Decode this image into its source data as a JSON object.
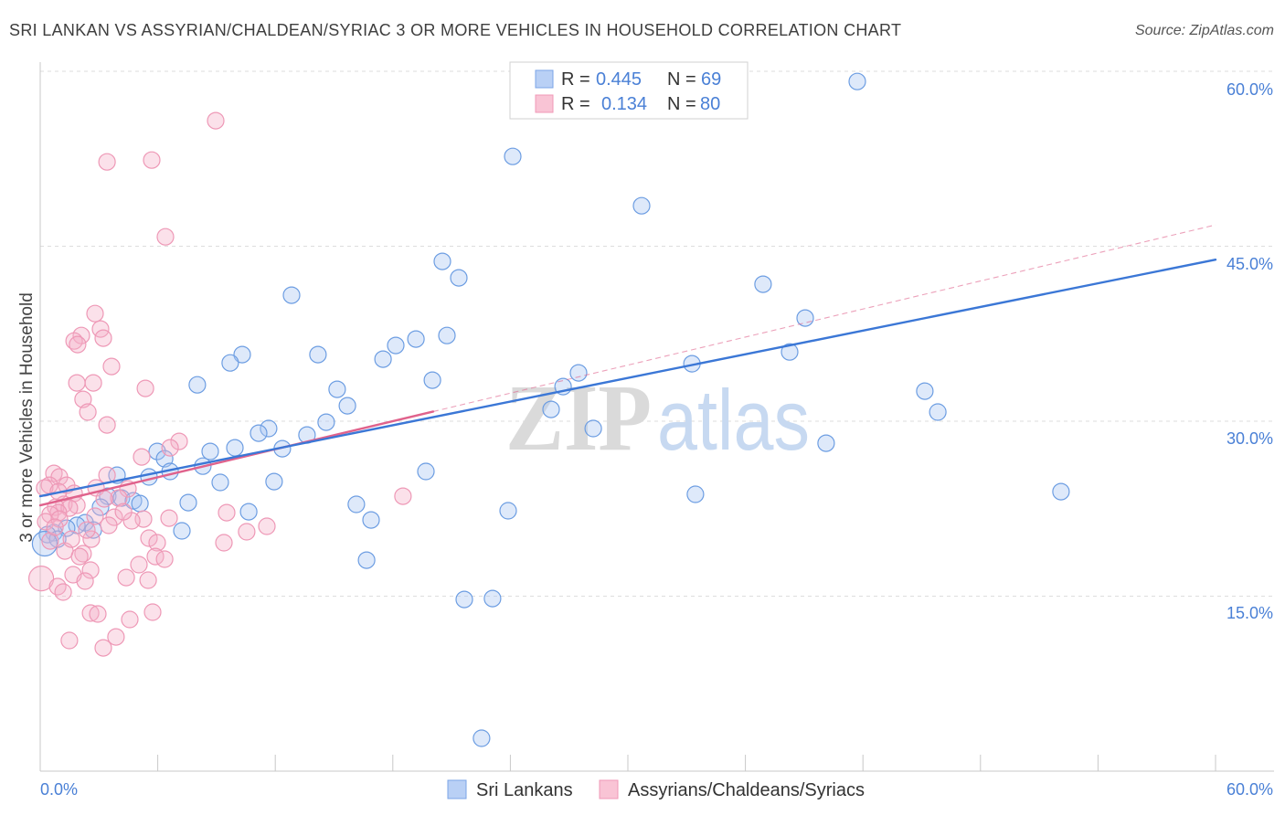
{
  "source": "Source: ZipAtlas.com",
  "watermark": {
    "zip": "ZIP",
    "atlas": "atlas"
  },
  "chart_data": {
    "type": "scatter",
    "title": "SRI LANKAN VS ASSYRIAN/CHALDEAN/SYRIAC 3 OR MORE VEHICLES IN HOUSEHOLD CORRELATION CHART",
    "ylabel": "3 or more Vehicles in Household",
    "xlim": [
      0,
      60
    ],
    "ylim": [
      0,
      60
    ],
    "grid": true,
    "x_ticks": [
      0,
      6,
      12,
      18,
      24,
      30,
      36,
      42,
      48,
      54,
      60
    ],
    "x_tick_labels": [
      {
        "value": 0,
        "label": "0.0%"
      },
      {
        "value": 60,
        "label": "60.0%"
      }
    ],
    "y_ticks": [
      {
        "value": 15,
        "label": "15.0%"
      },
      {
        "value": 30,
        "label": "30.0%"
      },
      {
        "value": 45,
        "label": "45.0%"
      },
      {
        "value": 60,
        "label": "60.0%"
      }
    ],
    "stat_labels": {
      "r": "R =",
      "n": "N ="
    },
    "series": [
      {
        "name": "Sri Lankans",
        "r_text": "0.445",
        "n_text": "69",
        "fill": "#a9c6f2",
        "stroke": "#6c9de2",
        "swatch_fill": "#b9d0f5",
        "trend_color": "#3b77d6",
        "trend": {
          "x0": 0,
          "y0": 23.57,
          "x1": 60,
          "y1": 43.85
        },
        "points": [
          [
            41.71,
            59.12
          ],
          [
            24.12,
            52.7
          ],
          [
            30.7,
            48.47
          ],
          [
            20.53,
            43.7
          ],
          [
            21.37,
            42.29
          ],
          [
            36.9,
            41.74
          ],
          [
            12.83,
            40.8
          ],
          [
            39.05,
            38.84
          ],
          [
            20.76,
            37.35
          ],
          [
            19.18,
            37.04
          ],
          [
            18.15,
            36.49
          ],
          [
            38.26,
            35.94
          ],
          [
            14.18,
            35.71
          ],
          [
            10.31,
            35.71
          ],
          [
            9.7,
            35.0
          ],
          [
            17.5,
            35.32
          ],
          [
            33.27,
            34.93
          ],
          [
            27.48,
            34.14
          ],
          [
            20.02,
            33.52
          ],
          [
            26.69,
            32.97
          ],
          [
            8.02,
            33.12
          ],
          [
            15.16,
            32.73
          ],
          [
            15.68,
            31.32
          ],
          [
            45.16,
            32.58
          ],
          [
            26.08,
            31.01
          ],
          [
            45.82,
            30.78
          ],
          [
            14.6,
            29.91
          ],
          [
            11.66,
            29.37
          ],
          [
            11.15,
            28.97
          ],
          [
            28.23,
            29.37
          ],
          [
            13.62,
            28.82
          ],
          [
            12.36,
            27.64
          ],
          [
            9.94,
            27.72
          ],
          [
            8.68,
            27.41
          ],
          [
            5.97,
            27.41
          ],
          [
            6.35,
            26.78
          ],
          [
            40.12,
            28.11
          ],
          [
            8.3,
            26.15
          ],
          [
            6.63,
            25.69
          ],
          [
            19.69,
            25.69
          ],
          [
            3.92,
            25.37
          ],
          [
            5.55,
            25.22
          ],
          [
            11.94,
            24.82
          ],
          [
            9.19,
            24.75
          ],
          [
            52.11,
            23.96
          ],
          [
            33.45,
            23.73
          ],
          [
            3.45,
            23.57
          ],
          [
            4.15,
            23.41
          ],
          [
            4.76,
            23.18
          ],
          [
            5.09,
            22.94
          ],
          [
            7.56,
            23.02
          ],
          [
            16.14,
            22.87
          ],
          [
            10.64,
            22.24
          ],
          [
            23.89,
            22.32
          ],
          [
            3.08,
            22.63
          ],
          [
            16.89,
            21.53
          ],
          [
            2.29,
            21.3
          ],
          [
            1.87,
            21.07
          ],
          [
            1.35,
            20.83
          ],
          [
            2.71,
            20.67
          ],
          [
            7.23,
            20.6
          ],
          [
            0.7,
            20.44
          ],
          [
            0.37,
            20.28
          ],
          [
            0.89,
            19.89
          ],
          [
            0.23,
            19.5
          ],
          [
            16.66,
            18.09
          ],
          [
            21.65,
            14.72
          ],
          [
            23.09,
            14.8
          ],
          [
            22.53,
            2.82
          ]
        ]
      },
      {
        "name": "Assyrians/Chaldeans/Syriacs",
        "r_text": "0.134",
        "n_text": "80",
        "fill": "#f4b0c7",
        "stroke": "#ee98b6",
        "swatch_fill": "#f9c4d5",
        "trend_color": "#e0628c",
        "trend": {
          "x0": 0,
          "y0": 22.79,
          "x1": 60,
          "y1": 46.83,
          "solid_to_x": 20.06
        },
        "points": [
          [
            8.96,
            55.76
          ],
          [
            3.41,
            52.23
          ],
          [
            5.69,
            52.39
          ],
          [
            6.39,
            45.81
          ],
          [
            2.8,
            39.23
          ],
          [
            3.08,
            37.9
          ],
          [
            2.1,
            37.35
          ],
          [
            1.73,
            36.88
          ],
          [
            1.91,
            36.57
          ],
          [
            3.22,
            37.12
          ],
          [
            3.64,
            34.69
          ],
          [
            2.71,
            33.28
          ],
          [
            1.87,
            33.28
          ],
          [
            5.37,
            32.81
          ],
          [
            2.19,
            31.87
          ],
          [
            2.43,
            30.78
          ],
          [
            3.41,
            29.68
          ],
          [
            7.09,
            28.27
          ],
          [
            6.63,
            27.72
          ],
          [
            5.18,
            26.94
          ],
          [
            0.7,
            25.53
          ],
          [
            0.98,
            25.22
          ],
          [
            3.41,
            25.37
          ],
          [
            0.47,
            24.51
          ],
          [
            1.35,
            24.51
          ],
          [
            2.85,
            24.28
          ],
          [
            0.23,
            24.28
          ],
          [
            0.93,
            23.96
          ],
          [
            4.48,
            24.2
          ],
          [
            1.73,
            23.81
          ],
          [
            18.52,
            23.57
          ],
          [
            4.01,
            23.41
          ],
          [
            3.27,
            23.34
          ],
          [
            1.21,
            22.87
          ],
          [
            1.87,
            22.79
          ],
          [
            0.79,
            22.63
          ],
          [
            1.49,
            22.55
          ],
          [
            9.52,
            22.16
          ],
          [
            5.27,
            21.61
          ],
          [
            4.67,
            21.46
          ],
          [
            6.58,
            21.69
          ],
          [
            3.78,
            21.77
          ],
          [
            2.8,
            21.85
          ],
          [
            0.93,
            22.16
          ],
          [
            0.51,
            22.0
          ],
          [
            0.28,
            21.38
          ],
          [
            11.57,
            20.99
          ],
          [
            10.54,
            20.52
          ],
          [
            3.5,
            21.07
          ],
          [
            5.55,
            19.97
          ],
          [
            5.97,
            19.58
          ],
          [
            9.38,
            19.58
          ],
          [
            2.61,
            19.89
          ],
          [
            0.51,
            19.73
          ],
          [
            2.19,
            18.64
          ],
          [
            5.88,
            18.4
          ],
          [
            1.26,
            18.87
          ],
          [
            2.01,
            18.4
          ],
          [
            5.04,
            17.7
          ],
          [
            2.57,
            17.23
          ],
          [
            1.68,
            16.84
          ],
          [
            4.39,
            16.6
          ],
          [
            5.51,
            16.37
          ],
          [
            2.29,
            16.29
          ],
          [
            0.05,
            16.52
          ],
          [
            0.89,
            15.82
          ],
          [
            1.17,
            15.35
          ],
          [
            5.74,
            13.63
          ],
          [
            2.57,
            13.55
          ],
          [
            2.94,
            13.47
          ],
          [
            4.57,
            13.0
          ],
          [
            3.87,
            11.51
          ],
          [
            1.49,
            11.2
          ],
          [
            3.22,
            10.57
          ],
          [
            0.98,
            21.61
          ],
          [
            0.75,
            20.91
          ],
          [
            6.35,
            18.17
          ],
          [
            4.25,
            22.24
          ],
          [
            2.38,
            20.67
          ],
          [
            1.59,
            19.89
          ]
        ]
      }
    ]
  }
}
